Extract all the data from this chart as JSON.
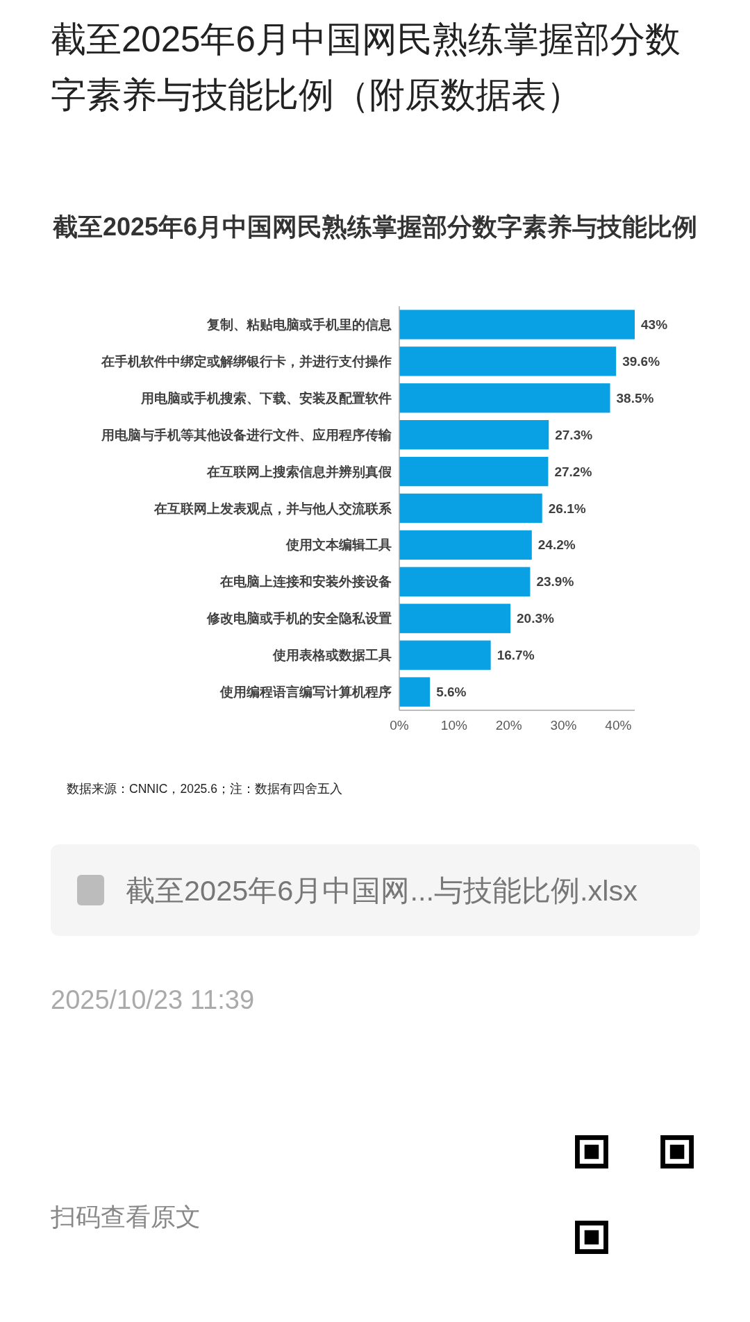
{
  "chart_data": {
    "type": "bar",
    "orientation": "horizontal",
    "title": "截至2025年6月中国网民熟练掌握部分数字素养与技能比例（附原数据表）",
    "subtitle": "截至2025年6月中国网民熟练掌握部分数字素养与技能比例",
    "categories": [
      "复制、粘贴电脑或手机里的信息",
      "在手机软件中绑定或解绑银行卡，并进行支付操作",
      "用电脑或手机搜索、下载、安装及配置软件",
      "用电脑与手机等其他设备进行文件、应用程序传输",
      "在互联网上搜索信息并辨别真假",
      "在互联网上发表观点，并与他人交流联系",
      "使用文本编辑工具",
      "在电脑上连接和安装外接设备",
      "修改电脑或手机的安全隐私设置",
      "使用表格或数据工具",
      "使用编程语言编写计算机程序"
    ],
    "values": [
      43,
      39.6,
      38.5,
      27.3,
      27.2,
      26.1,
      24.2,
      23.9,
      20.3,
      16.7,
      5.6
    ],
    "value_labels": [
      "43%",
      "39.6%",
      "38.5%",
      "27.3%",
      "27.2%",
      "26.1%",
      "24.2%",
      "23.9%",
      "20.3%",
      "16.7%",
      "5.6%"
    ],
    "color": "#0aa0e4",
    "xlim": [
      0,
      43
    ],
    "xticks": [
      {
        "value": 0,
        "label": "0%"
      },
      {
        "value": 10,
        "label": "10%"
      },
      {
        "value": 20,
        "label": "20%"
      },
      {
        "value": 30,
        "label": "30%"
      },
      {
        "value": 40,
        "label": "40%"
      }
    ],
    "annotations": [
      "数据来源：CNNIC，2025.6；注：数据有四舍五入",
      "截至2025年6月中国网...与技能比例.xlsx",
      "2025/10/23 11:39",
      "扫码查看原文"
    ]
  }
}
